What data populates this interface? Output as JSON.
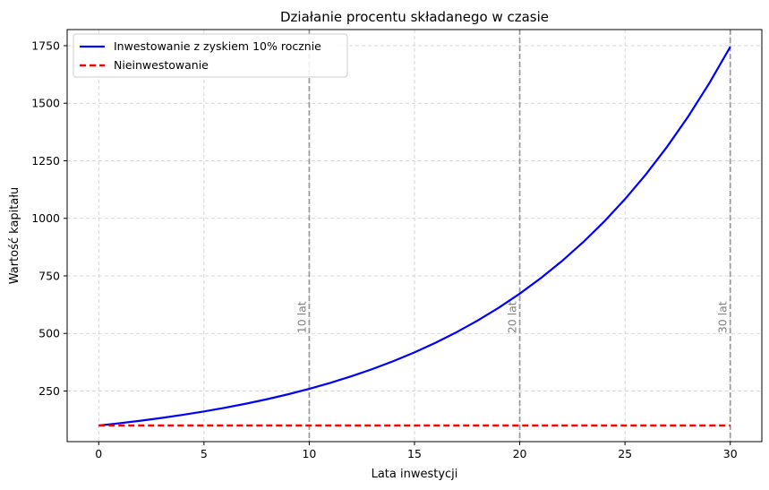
{
  "chart_data": {
    "type": "line",
    "title": "Działanie procentu składanego w czasie",
    "xlabel": "Lata inwestycji",
    "ylabel": "Wartość kapitału",
    "xlim": [
      -1.5,
      31.5
    ],
    "ylim": [
      30,
      1820
    ],
    "xticks": [
      0,
      5,
      10,
      15,
      20,
      25,
      30
    ],
    "yticks": [
      250,
      500,
      750,
      1000,
      1250,
      1500,
      1750
    ],
    "grid": true,
    "legend_position": "top-left",
    "x": [
      0,
      1,
      2,
      3,
      4,
      5,
      6,
      7,
      8,
      9,
      10,
      11,
      12,
      13,
      14,
      15,
      16,
      17,
      18,
      19,
      20,
      21,
      22,
      23,
      24,
      25,
      26,
      27,
      28,
      29,
      30
    ],
    "series": [
      {
        "name": "Inwestowanie z zyskiem 10% rocznie",
        "color": "#0000ff",
        "style": "solid",
        "values": [
          100,
          110,
          121,
          133.1,
          146.41,
          161.05,
          177.16,
          194.87,
          214.36,
          235.79,
          259.37,
          285.31,
          313.84,
          345.23,
          379.75,
          417.72,
          459.5,
          505.45,
          555.99,
          611.59,
          672.75,
          740.02,
          814.03,
          895.43,
          984.97,
          1083.47,
          1191.82,
          1311,
          1442.1,
          1586.31,
          1744.94
        ]
      },
      {
        "name": "Nieinwestowanie",
        "color": "#ff0000",
        "style": "dashed",
        "values": [
          100,
          100,
          100,
          100,
          100,
          100,
          100,
          100,
          100,
          100,
          100,
          100,
          100,
          100,
          100,
          100,
          100,
          100,
          100,
          100,
          100,
          100,
          100,
          100,
          100,
          100,
          100,
          100,
          100,
          100,
          100
        ]
      }
    ],
    "annotations": [
      {
        "x": 10,
        "label": "10 lat"
      },
      {
        "x": 20,
        "label": "20 lat"
      },
      {
        "x": 30,
        "label": "30 lat"
      }
    ],
    "annotation_label_y": 500,
    "annotation_color": "#808080"
  }
}
